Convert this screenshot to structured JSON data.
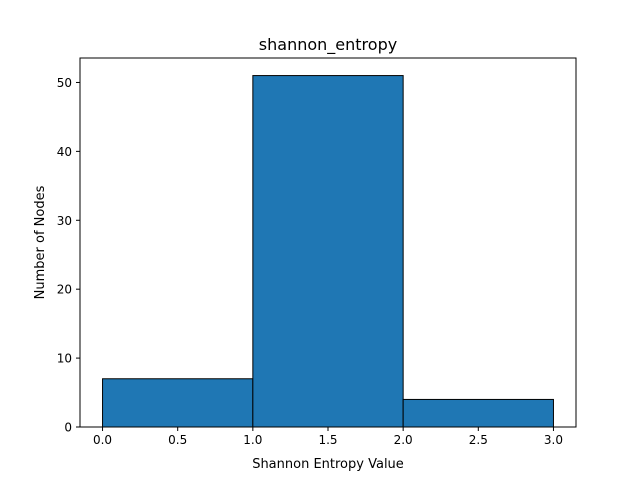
{
  "chart_data": {
    "type": "bar",
    "title": "shannon_entropy",
    "xlabel": "Shannon Entropy Value",
    "ylabel": "Number of Nodes",
    "bins": [
      {
        "start": 0.0,
        "end": 1.0,
        "count": 7
      },
      {
        "start": 1.0,
        "end": 2.0,
        "count": 51
      },
      {
        "start": 2.0,
        "end": 3.0,
        "count": 4
      }
    ],
    "xlim": [
      -0.15,
      3.15
    ],
    "ylim": [
      0,
      53.55
    ],
    "xticks": [
      "0.0",
      "0.5",
      "1.0",
      "1.5",
      "2.0",
      "2.5",
      "3.0"
    ],
    "yticks": [
      "0",
      "10",
      "20",
      "30",
      "40",
      "50"
    ],
    "grid": false,
    "legend": "none",
    "bar_color": "#1f77b4",
    "edge_color": "#000000"
  }
}
